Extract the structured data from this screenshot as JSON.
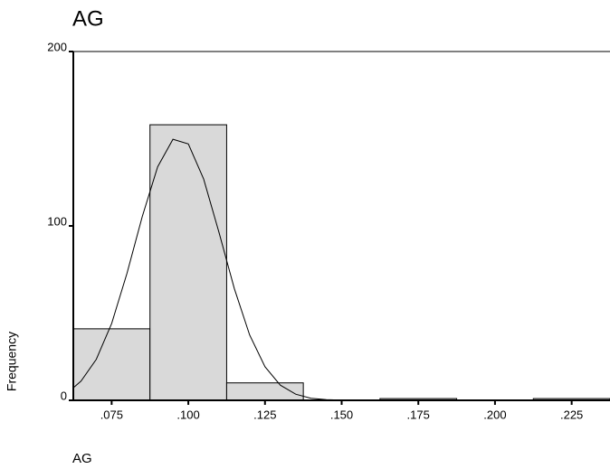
{
  "chart_data": {
    "type": "histogram",
    "title": "AG",
    "x_label": "AG",
    "y_label": "Frequency",
    "bins": [
      0.0625,
      0.0875,
      0.1125,
      0.1375,
      0.1625,
      0.1875,
      0.2125,
      0.2375
    ],
    "values": [
      41,
      158,
      10,
      0,
      1,
      0,
      1
    ],
    "color": "#d9d9d9",
    "xlim": [
      0.0625,
      0.2375
    ],
    "ylim": [
      0,
      200
    ],
    "yticks": [
      0,
      100,
      200
    ],
    "xticks": [
      {
        "value": 0.075,
        "label": ".075"
      },
      {
        "value": 0.1,
        "label": ".100"
      },
      {
        "value": 0.125,
        "label": ".125"
      },
      {
        "value": 0.15,
        "label": ".150"
      },
      {
        "value": 0.175,
        "label": ".175"
      },
      {
        "value": 0.2,
        "label": ".200"
      },
      {
        "value": 0.225,
        "label": ".225"
      }
    ],
    "curve": {
      "x": [
        0.0625,
        0.065,
        0.07,
        0.075,
        0.08,
        0.085,
        0.09,
        0.095,
        0.1,
        0.105,
        0.11,
        0.115,
        0.12,
        0.125,
        0.13,
        0.135,
        0.14,
        0.145,
        0.15
      ],
      "values": [
        7.2,
        11.0,
        23.5,
        44.1,
        72.8,
        105.4,
        133.9,
        149.7,
        147.0,
        126.9,
        96.2,
        64.1,
        37.5,
        19.3,
        8.7,
        3.5,
        1.2,
        0.4,
        0.1
      ]
    }
  }
}
